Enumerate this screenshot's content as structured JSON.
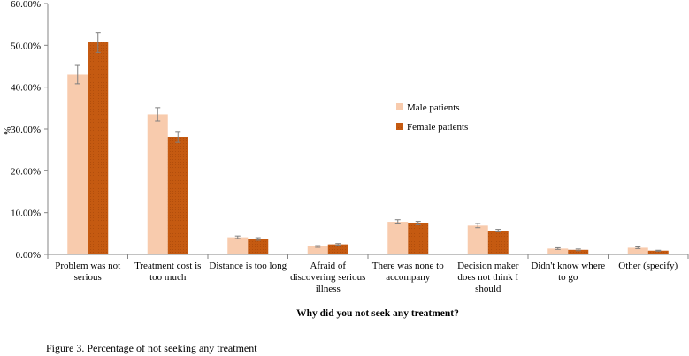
{
  "chart_data": {
    "type": "bar",
    "title": "",
    "xlabel": "Why did you not seek any treatment?",
    "ylabel": "%",
    "ylim": [
      0,
      60
    ],
    "yticks": [
      "0.00%",
      "10.00%",
      "20.00%",
      "30.00%",
      "40.00%",
      "50.00%",
      "60.00%"
    ],
    "categories": [
      [
        "Problem was not",
        "serious"
      ],
      [
        "Treatment cost is",
        "too much"
      ],
      [
        "Distance is too long"
      ],
      [
        "Afraid of",
        "discovering serious",
        "illness"
      ],
      [
        "There was none to",
        "accompany"
      ],
      [
        "Decision maker",
        "does not think I",
        "should"
      ],
      [
        "Didn't know where",
        "to go"
      ],
      [
        "Other (specify)"
      ]
    ],
    "series": [
      {
        "name": "Male patients",
        "color": "#F8CBAD",
        "values": [
          43.0,
          33.5,
          4.1,
          1.9,
          7.8,
          6.9,
          1.4,
          1.6
        ],
        "errors": [
          2.2,
          1.6,
          0.3,
          0.2,
          0.5,
          0.5,
          0.2,
          0.2
        ]
      },
      {
        "name": "Female patients",
        "color": "#C55A11",
        "values": [
          50.7,
          28.1,
          3.7,
          2.4,
          7.5,
          5.7,
          1.1,
          0.9
        ],
        "errors": [
          2.4,
          1.3,
          0.3,
          0.2,
          0.4,
          0.3,
          0.2,
          0.1
        ]
      }
    ],
    "grid": false,
    "legend": "right-center"
  },
  "caption": "Figure 3. Percentage of not seeking any treatment"
}
